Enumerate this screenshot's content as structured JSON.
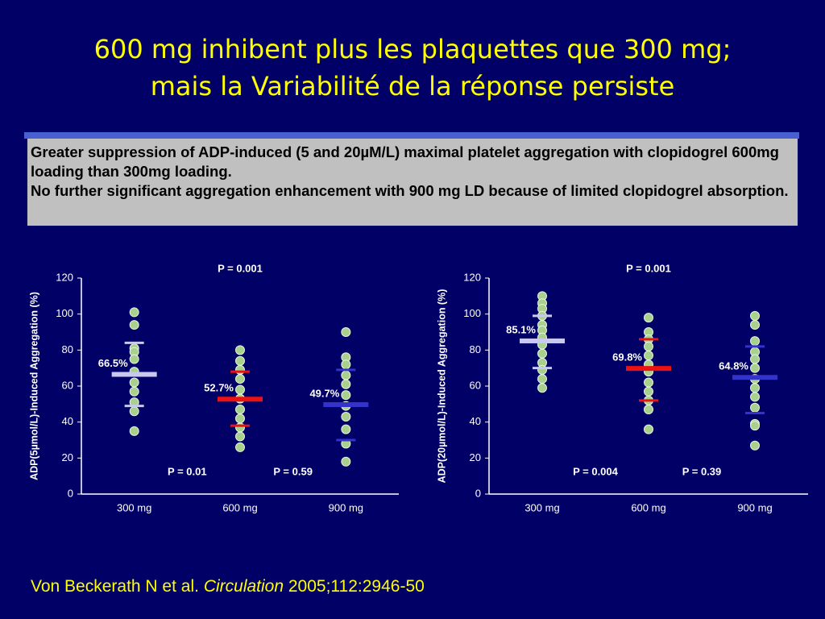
{
  "title": [
    "600 mg inhibent plus les plaquettes que 300 mg;",
    "mais la Variabilité de la réponse persiste"
  ],
  "summary": [
    "Greater suppression of ADP-induced (5 and 20µM/L) maximal platelet aggregation with clopidogrel 600mg loading than 300mg loading.",
    "No further significant aggregation enhancement with 900 mg LD because of limited clopidogrel absorption."
  ],
  "citation": {
    "authors": "Von Beckerath N et al.",
    "journal": "Circulation",
    "ref": "2005;112:2946-50"
  },
  "chart_data": [
    {
      "type": "dot",
      "y_label": "ADP(5µmol/L)-Induced Aggregation (%)",
      "ylim": [
        0,
        120
      ],
      "yticks": [
        0,
        20,
        40,
        60,
        80,
        100,
        120
      ],
      "categories": [
        "300 mg",
        "600 mg",
        "900 mg"
      ],
      "point_color": "#a9d18e",
      "mean_colors": [
        "#c8c8f0",
        "#ee1111",
        "#3333cc"
      ],
      "points": [
        [
          101,
          94,
          81,
          79,
          75,
          68,
          62,
          57,
          51,
          46,
          35
        ],
        [
          80,
          74,
          69,
          64,
          58,
          53,
          47,
          42,
          37,
          32,
          26
        ],
        [
          90,
          76,
          72,
          66,
          61,
          55,
          49,
          43,
          36,
          28,
          18
        ]
      ],
      "means": [
        66.5,
        52.7,
        49.7
      ],
      "value_labels": [
        "66.5%",
        "52.7%",
        "49.7%"
      ],
      "sd_upper": [
        84,
        68,
        69
      ],
      "sd_lower": [
        49,
        38,
        30
      ],
      "p_overall": "P = 0.001",
      "p_comparisons": [
        "P = 0.01",
        "P = 0.59"
      ]
    },
    {
      "type": "dot",
      "y_label": "ADP(20µmol/L)-Induced Aggregation (%)",
      "ylim": [
        0,
        120
      ],
      "yticks": [
        0,
        20,
        40,
        60,
        80,
        100,
        120
      ],
      "categories": [
        "300 mg",
        "600 mg",
        "900 mg"
      ],
      "point_color": "#a9d18e",
      "mean_colors": [
        "#c8c8f0",
        "#ee1111",
        "#3333cc"
      ],
      "points": [
        [
          110,
          106,
          103,
          99,
          94,
          91,
          87,
          83,
          78,
          73,
          69,
          64,
          59
        ],
        [
          98,
          90,
          86,
          82,
          77,
          72,
          68,
          62,
          57,
          52,
          47,
          36
        ],
        [
          99,
          94,
          85,
          79,
          75,
          70,
          64,
          59,
          54,
          48,
          39,
          38,
          27
        ]
      ],
      "means": [
        85.1,
        69.8,
        64.8
      ],
      "value_labels": [
        "85.1%",
        "69.8%",
        "64.8%"
      ],
      "sd_upper": [
        99,
        86,
        82
      ],
      "sd_lower": [
        70,
        52,
        45
      ],
      "p_overall": "P = 0.001",
      "p_comparisons": [
        "P = 0.004",
        "P = 0.39"
      ]
    }
  ]
}
